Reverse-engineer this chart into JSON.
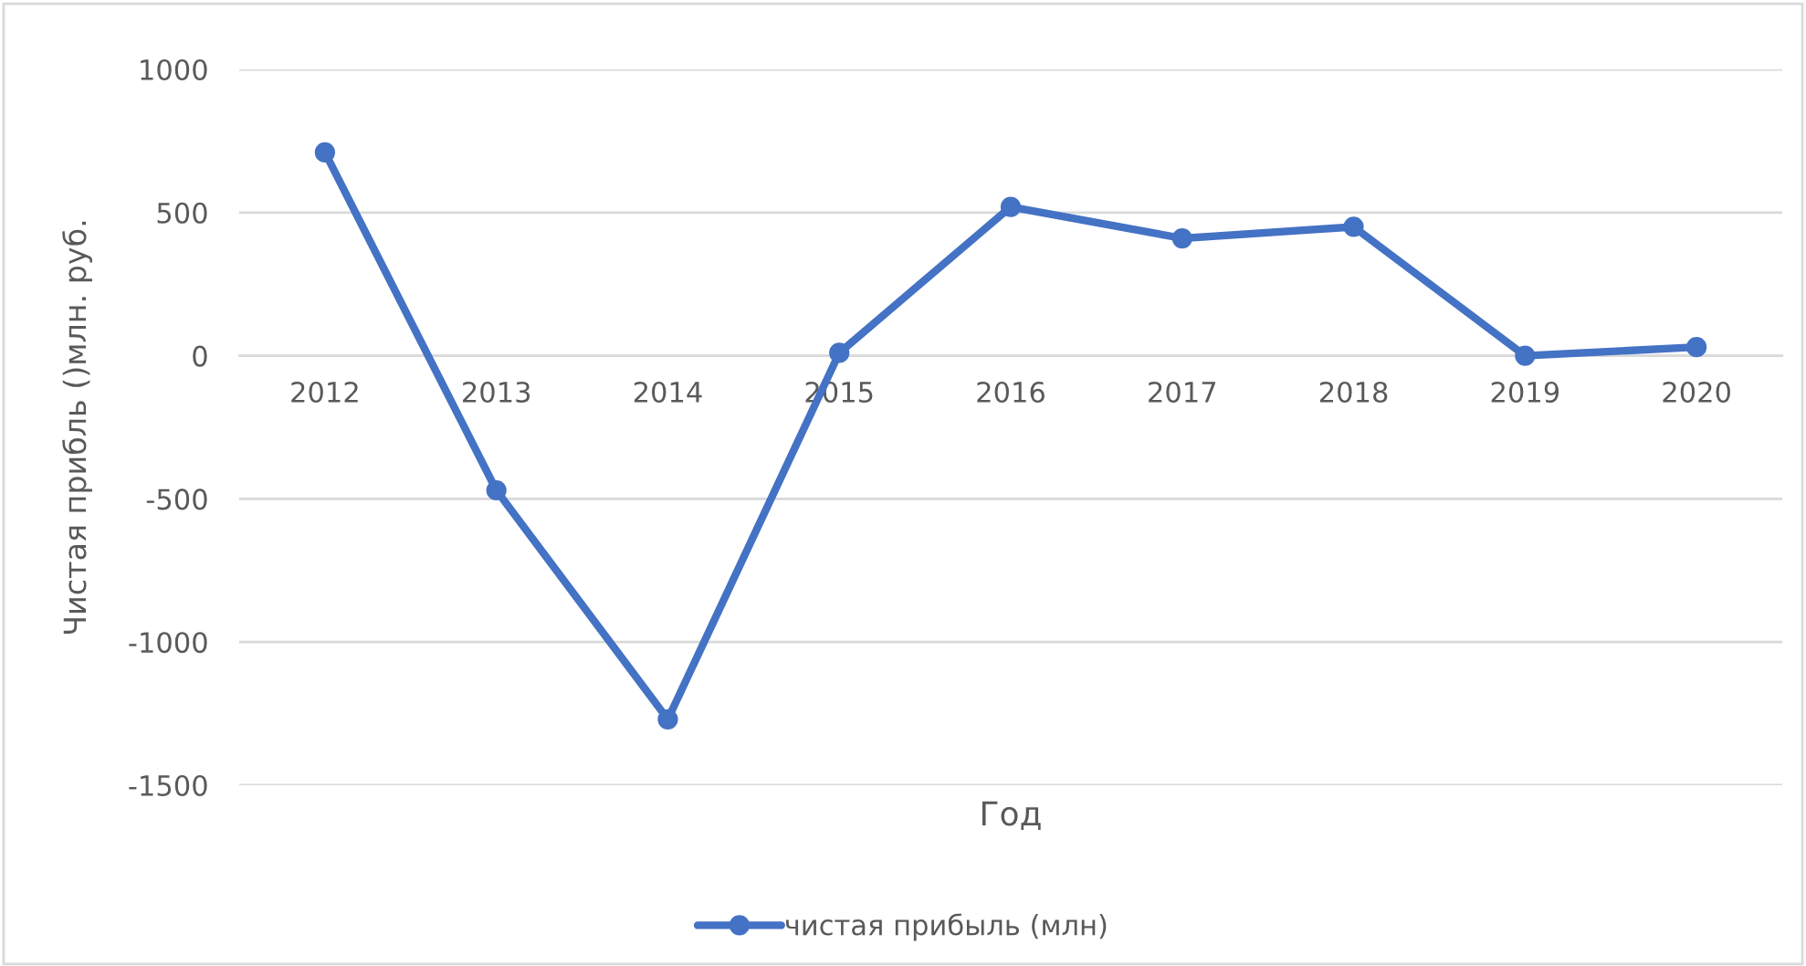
{
  "chart_data": {
    "type": "line",
    "xlabel": "Год",
    "ylabel": "Чистая прибль ()млн. руб.",
    "categories": [
      "2012",
      "2013",
      "2014",
      "2015",
      "2016",
      "2017",
      "2018",
      "2019",
      "2020"
    ],
    "series": [
      {
        "name": "чистая прибыль (млн)",
        "color": "#4472c4",
        "values": [
          710,
          -470,
          -1270,
          10,
          520,
          410,
          450,
          0,
          30
        ]
      }
    ],
    "ylim": [
      -1500,
      1000
    ],
    "yticks": [
      -1500,
      -1000,
      -500,
      0,
      500,
      1000
    ],
    "grid": "y",
    "legend": "bottom",
    "marker": "circle",
    "line_style": "solid"
  }
}
